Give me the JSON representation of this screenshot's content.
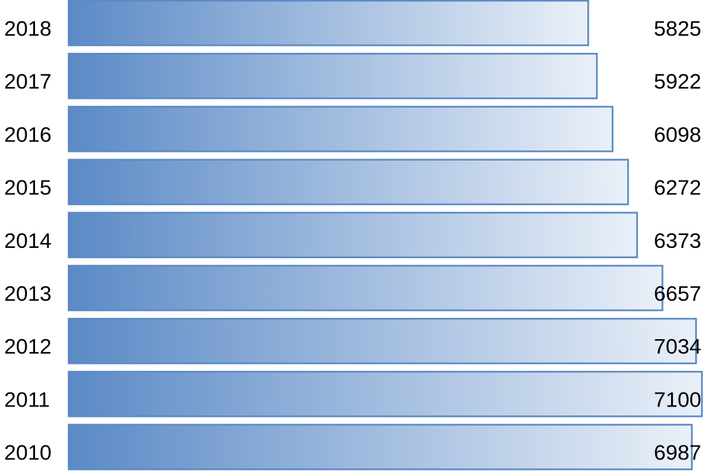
{
  "chart_data": {
    "type": "bar",
    "orientation": "horizontal",
    "categories": [
      "2018",
      "2017",
      "2016",
      "2015",
      "2014",
      "2013",
      "2012",
      "2011",
      "2010"
    ],
    "values": [
      5825,
      5922,
      6098,
      6272,
      6373,
      6657,
      7034,
      7100,
      6987
    ],
    "title": "",
    "xlabel": "",
    "ylabel": "",
    "xlim": [
      0,
      7100
    ],
    "grid": false,
    "legend": "none",
    "colors": {
      "bar_gradient_start": "#5b8ac6",
      "bar_gradient_end": "#eaf0f8",
      "bar_outline": "#5b8ac6",
      "text": "#000000"
    }
  }
}
